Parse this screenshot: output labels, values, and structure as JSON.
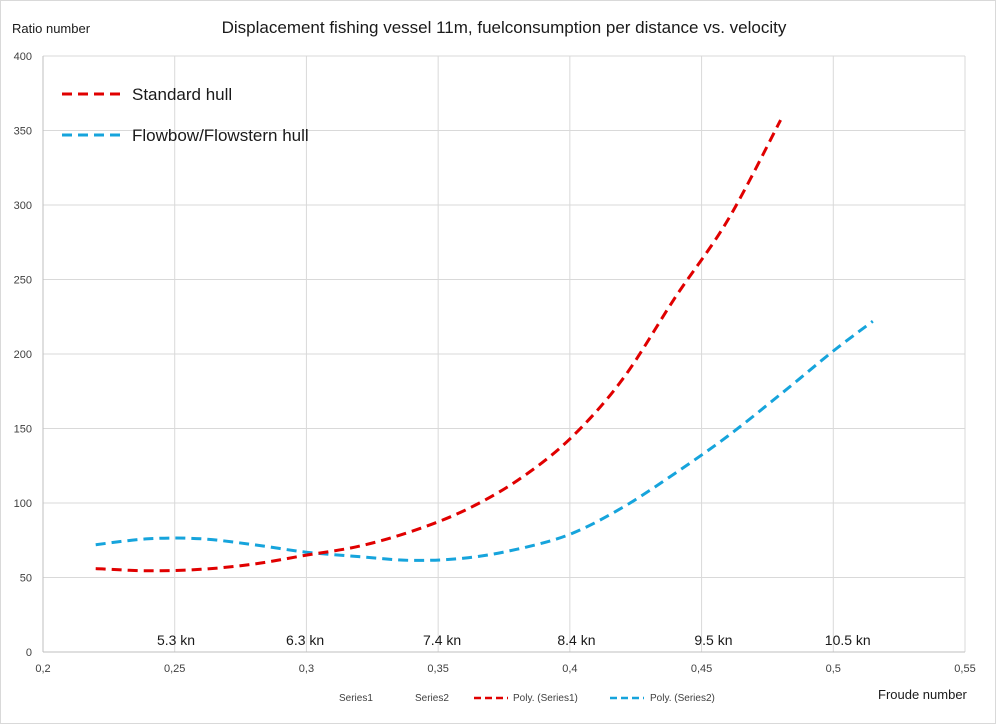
{
  "chart_data": {
    "type": "line",
    "title": "Displacement fishing vessel 11m, fuelconsumption per distance vs. velocity",
    "ylabel": "Ratio number",
    "xlabel": "Froude number",
    "xlim": [
      0.2,
      0.55
    ],
    "ylim": [
      0,
      400
    ],
    "x_ticks": [
      0.2,
      0.25,
      0.3,
      0.35,
      0.4,
      0.45,
      0.5,
      0.55
    ],
    "x_tick_labels": [
      "0,2",
      "0,25",
      "0,3",
      "0,35",
      "0,4",
      "0,45",
      "0,5",
      "0,55"
    ],
    "y_ticks": [
      0,
      50,
      100,
      150,
      200,
      250,
      300,
      350,
      400
    ],
    "y_tick_labels": [
      "0",
      "50",
      "100",
      "150",
      "200",
      "250",
      "300",
      "350",
      "400"
    ],
    "grid": true,
    "speed_annotations": [
      {
        "x": 0.2505,
        "label": "5.3 kn"
      },
      {
        "x": 0.2995,
        "label": "6.3 kn"
      },
      {
        "x": 0.3515,
        "label": "7.4 kn"
      },
      {
        "x": 0.4025,
        "label": "8.4 kn"
      },
      {
        "x": 0.4545,
        "label": "9.5 kn"
      },
      {
        "x": 0.5055,
        "label": "10.5 kn"
      }
    ],
    "series": [
      {
        "name": "Standard hull",
        "color": "#e00000",
        "dash": "dashed",
        "x": [
          0.22,
          0.24,
          0.26,
          0.28,
          0.3,
          0.32,
          0.34,
          0.36,
          0.38,
          0.4,
          0.42,
          0.44,
          0.46,
          0.48
        ],
        "y": [
          56,
          54.5,
          55.5,
          59,
          65,
          71,
          81,
          95,
          115,
          143,
          183,
          238,
          290,
          357
        ]
      },
      {
        "name": "Flowbow/Flowstern hull",
        "color": "#16a4dc",
        "dash": "dashed",
        "x": [
          0.22,
          0.24,
          0.26,
          0.28,
          0.3,
          0.32,
          0.34,
          0.36,
          0.38,
          0.4,
          0.42,
          0.44,
          0.46,
          0.48,
          0.5,
          0.515
        ],
        "y": [
          72,
          76,
          76,
          72,
          67,
          64,
          61.5,
          63,
          69,
          79,
          97,
          120,
          145,
          173,
          202,
          222
        ]
      }
    ],
    "legend_large": [
      "Standard hull",
      "Flowbow/Flowstern hull"
    ],
    "legend_bottom": [
      "Series1",
      "Series2",
      "Poly. (Series1)",
      "Poly. (Series2)"
    ]
  }
}
